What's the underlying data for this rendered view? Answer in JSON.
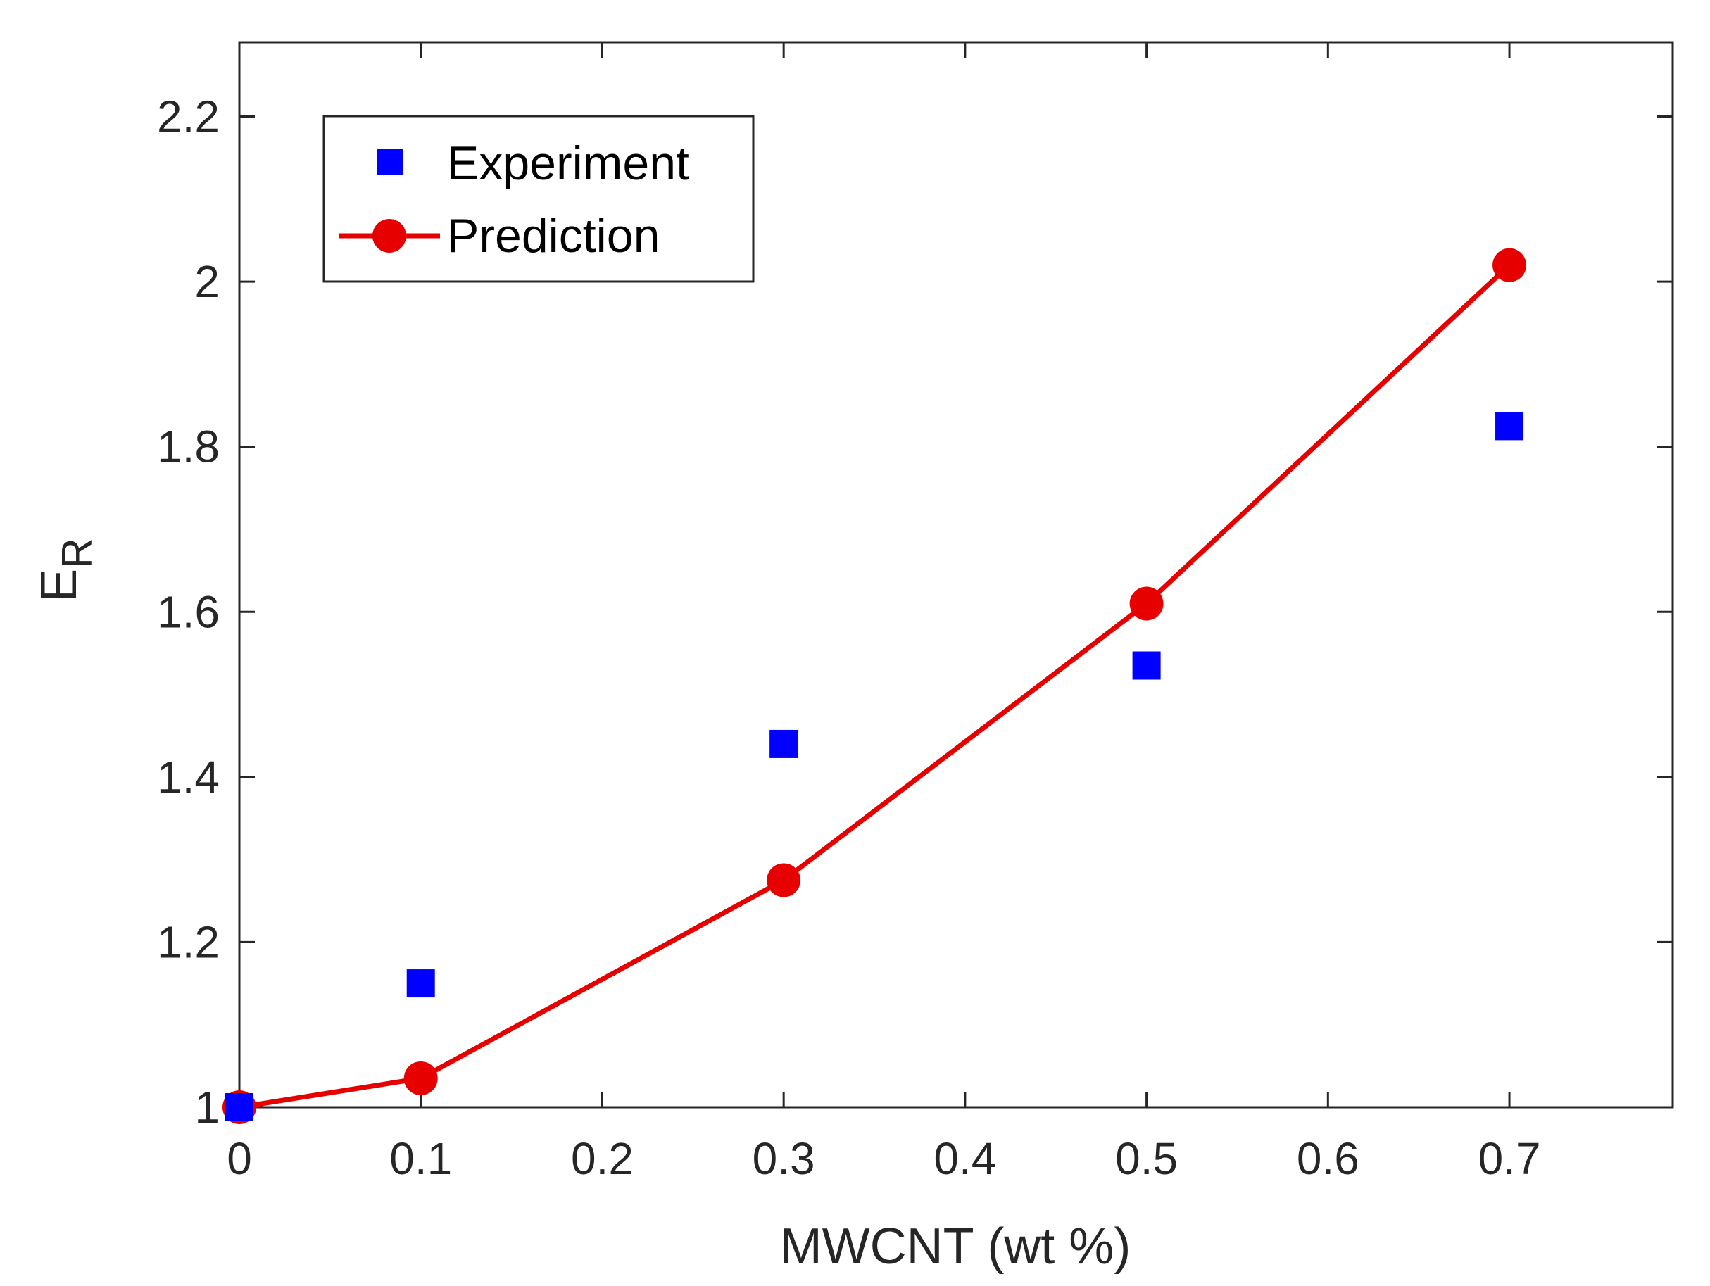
{
  "chart_data": {
    "type": "scatter",
    "title": "",
    "xlabel": "MWCNT (wt %)",
    "ylabel": {
      "main": "E",
      "subscript": "R"
    },
    "xlim": [
      0,
      0.79
    ],
    "ylim": [
      1,
      2.29
    ],
    "x_ticks": [
      0,
      0.1,
      0.2,
      0.3,
      0.4,
      0.5,
      0.6,
      0.7
    ],
    "x_tick_labels": [
      "0",
      "0.1",
      "0.2",
      "0.3",
      "0.4",
      "0.5",
      "0.6",
      "0.7"
    ],
    "y_ticks": [
      1,
      1.2,
      1.4,
      1.6,
      1.8,
      2,
      2.2
    ],
    "y_tick_labels": [
      "1",
      "1.2",
      "1.4",
      "1.6",
      "1.8",
      "2",
      "2.2"
    ],
    "grid": false,
    "legend_position": "top-left",
    "series": [
      {
        "name": "Experiment",
        "style": "square-markers",
        "color": "#0000ff",
        "x": [
          0,
          0.1,
          0.3,
          0.5,
          0.7
        ],
        "y": [
          1.0,
          1.15,
          1.44,
          1.535,
          1.825
        ]
      },
      {
        "name": "Prediction",
        "style": "line-with-circle-markers",
        "color": "#e60000",
        "x": [
          0,
          0.1,
          0.3,
          0.5,
          0.7
        ],
        "y": [
          1.0,
          1.035,
          1.275,
          1.61,
          2.02
        ]
      }
    ]
  }
}
